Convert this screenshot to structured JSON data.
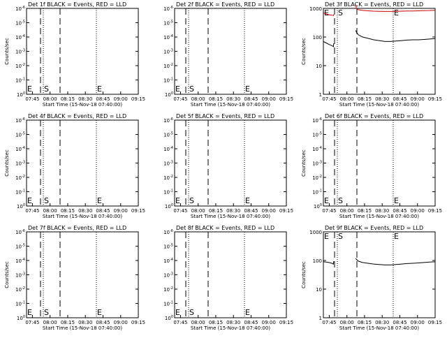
{
  "chart_data": [
    {
      "type": "line",
      "title": "Det 1f BLACK = Events, RED = LLD",
      "xlabel": "Start Time (15-Nov-18 07:40:00)",
      "ylabel": "Counts/sec",
      "x_ticks": [
        "07:45",
        "08:00",
        "08:15",
        "08:30",
        "08:45",
        "09:00",
        "09:15"
      ],
      "x_range_minutes": [
        0,
        40
      ],
      "y_log": true,
      "y_ticks": [
        "10^0",
        "10^-1",
        "10^-2",
        "10^-3",
        "10^-4",
        "10^-5",
        "10^-6"
      ],
      "y_ticks_exp": [
        0,
        -1,
        -2,
        -3,
        -4,
        -5,
        -6
      ],
      "ylim_exp": [
        0,
        -6
      ],
      "dashed_lines_min": [
        5,
        12
      ],
      "dotted_lines_min": [
        6,
        25
      ],
      "markers": [
        {
          "label": "E",
          "x_min": 0
        },
        {
          "label": "S",
          "x_min": 6
        },
        {
          "label": "E",
          "x_min": 25
        }
      ],
      "series": []
    },
    {
      "type": "line",
      "title": "Det 2f BLACK = Events, RED = LLD",
      "xlabel": "Start Time (15-Nov-18 07:40:00)",
      "ylabel": "",
      "x_ticks": [
        "07:45",
        "08:00",
        "08:15",
        "08:30",
        "08:45",
        "09:00",
        "09:15"
      ],
      "x_range_minutes": [
        0,
        40
      ],
      "y_log": true,
      "y_ticks": [
        "10^0",
        "10^-1",
        "10^-2",
        "10^-3",
        "10^-4",
        "10^-5",
        "10^-6"
      ],
      "y_ticks_exp": [
        0,
        -1,
        -2,
        -3,
        -4,
        -5,
        -6
      ],
      "ylim_exp": [
        0,
        -6
      ],
      "dashed_lines_min": [
        4,
        12
      ],
      "dotted_lines_min": [
        5,
        25
      ],
      "markers": [
        {
          "label": "E",
          "x_min": 0
        },
        {
          "label": "S",
          "x_min": 5
        },
        {
          "label": "E",
          "x_min": 25
        }
      ],
      "series": []
    },
    {
      "type": "line",
      "title": "Det 3f BLACK = Events, RED = LLD",
      "xlabel": "Start Time (15-Nov-18 07:40:00)",
      "ylabel": "Counts/sec",
      "x_ticks": [
        "07:45",
        "08:00",
        "08:15",
        "08:30",
        "08:45",
        "09:00",
        "09:15"
      ],
      "x_range_minutes": [
        0,
        40
      ],
      "y_log": true,
      "y_ticks": [
        "1",
        "10",
        "100",
        "1000"
      ],
      "y_ticks_exp": [
        0,
        1,
        2,
        3
      ],
      "ylim_exp": [
        0,
        3
      ],
      "dashed_lines_min": [
        4,
        12
      ],
      "dotted_lines_min": [
        5,
        25
      ],
      "markers": [
        {
          "label": "E",
          "x_min": 0
        },
        {
          "label": "S",
          "x_min": 5
        },
        {
          "label": "E",
          "x_min": 25
        }
      ],
      "series": [
        {
          "name": "Events",
          "color": "#000000",
          "segments": [
            {
              "x": [
                0,
                1,
                2,
                3,
                3.6,
                3.7
              ],
              "y": [
                70,
                62,
                55,
                50,
                46,
                60
              ]
            },
            {
              "x": [
                11.6,
                11.8,
                12.5,
                14,
                16,
                18,
                20,
                22,
                24,
                26,
                28,
                30,
                32,
                34,
                36,
                38,
                40
              ],
              "y": [
                170,
                150,
                120,
                100,
                90,
                80,
                75,
                70,
                70,
                72,
                75,
                78,
                80,
                80,
                82,
                85,
                88
              ]
            }
          ]
        },
        {
          "name": "LLD",
          "color": "#cc0000",
          "segments": [
            {
              "x": [
                0,
                1,
                2,
                3,
                3.6,
                3.7
              ],
              "y": [
                700,
                640,
                600,
                580,
                560,
                620
              ]
            },
            {
              "x": [
                11.6,
                11.8,
                12.5,
                14,
                16,
                18,
                20,
                22,
                24,
                26,
                28,
                30,
                32,
                34,
                36,
                38,
                40
              ],
              "y": [
                1350,
                1000,
                900,
                850,
                820,
                800,
                790,
                780,
                780,
                790,
                800,
                810,
                810,
                820,
                830,
                840,
                860
              ]
            }
          ]
        }
      ]
    },
    {
      "type": "line",
      "title": "Det 4f BLACK = Events, RED = LLD",
      "xlabel": "Start Time (15-Nov-18 07:40:00)",
      "ylabel": "Counts/sec",
      "x_ticks": [
        "07:45",
        "08:00",
        "08:15",
        "08:30",
        "08:45",
        "09:00",
        "09:15"
      ],
      "x_range_minutes": [
        0,
        40
      ],
      "y_log": true,
      "y_ticks": [
        "10^0",
        "10^-1",
        "10^-2",
        "10^-3",
        "10^-4",
        "10^-5",
        "10^-6"
      ],
      "y_ticks_exp": [
        0,
        -1,
        -2,
        -3,
        -4,
        -5,
        -6
      ],
      "ylim_exp": [
        0,
        -6
      ],
      "dashed_lines_min": [
        5,
        12
      ],
      "dotted_lines_min": [
        6,
        25
      ],
      "markers": [
        {
          "label": "E",
          "x_min": 0
        },
        {
          "label": "S",
          "x_min": 6
        },
        {
          "label": "E",
          "x_min": 25
        }
      ],
      "series": []
    },
    {
      "type": "line",
      "title": "Det 5f BLACK = Events, RED = LLD",
      "xlabel": "Start Time (15-Nov-18 07:40:00)",
      "ylabel": "",
      "x_ticks": [
        "07:45",
        "08:00",
        "08:15",
        "08:30",
        "08:45",
        "09:00",
        "09:15"
      ],
      "x_range_minutes": [
        0,
        40
      ],
      "y_log": true,
      "y_ticks": [
        "10^0",
        "10^-1",
        "10^-2",
        "10^-3",
        "10^-4",
        "10^-5",
        "10^-6"
      ],
      "y_ticks_exp": [
        0,
        -1,
        -2,
        -3,
        -4,
        -5,
        -6
      ],
      "ylim_exp": [
        0,
        -6
      ],
      "dashed_lines_min": [
        4,
        12
      ],
      "dotted_lines_min": [
        5,
        25
      ],
      "markers": [
        {
          "label": "E",
          "x_min": 0
        },
        {
          "label": "S",
          "x_min": 5
        },
        {
          "label": "E",
          "x_min": 25
        }
      ],
      "series": []
    },
    {
      "type": "line",
      "title": "Det 6f BLACK = Events, RED = LLD",
      "xlabel": "Start Time (15-Nov-18 07:40:00)",
      "ylabel": "Counts/sec",
      "x_ticks": [
        "07:45",
        "08:00",
        "08:15",
        "08:30",
        "08:45",
        "09:00",
        "09:15"
      ],
      "x_range_minutes": [
        0,
        40
      ],
      "y_log": true,
      "y_ticks": [
        "10^0",
        "10^-1",
        "10^-2",
        "10^-3",
        "10^-4",
        "10^-5",
        "10^-6"
      ],
      "y_ticks_exp": [
        0,
        -1,
        -2,
        -3,
        -4,
        -5,
        -6
      ],
      "ylim_exp": [
        0,
        -6
      ],
      "dashed_lines_min": [
        4,
        12
      ],
      "dotted_lines_min": [
        5,
        25
      ],
      "markers": [
        {
          "label": "E",
          "x_min": 0
        },
        {
          "label": "S",
          "x_min": 5
        },
        {
          "label": "E",
          "x_min": 25
        }
      ],
      "series": []
    },
    {
      "type": "line",
      "title": "Det 7f BLACK = Events, RED = LLD",
      "xlabel": "Start Time (15-Nov-18 07:40:00)",
      "ylabel": "Counts/sec",
      "x_ticks": [
        "07:45",
        "08:00",
        "08:15",
        "08:30",
        "08:45",
        "09:00",
        "09:15"
      ],
      "x_range_minutes": [
        0,
        40
      ],
      "y_log": true,
      "y_ticks": [
        "10^0",
        "10^-1",
        "10^-2",
        "10^-3",
        "10^-4",
        "10^-5",
        "10^-6"
      ],
      "y_ticks_exp": [
        0,
        -1,
        -2,
        -3,
        -4,
        -5,
        -6
      ],
      "ylim_exp": [
        0,
        -6
      ],
      "dashed_lines_min": [
        5,
        12
      ],
      "dotted_lines_min": [
        6,
        25
      ],
      "markers": [
        {
          "label": "E",
          "x_min": 0
        },
        {
          "label": "S",
          "x_min": 6
        },
        {
          "label": "E",
          "x_min": 25
        }
      ],
      "series": []
    },
    {
      "type": "line",
      "title": "Det 8f BLACK = Events, RED = LLD",
      "xlabel": "Start Time (15-Nov-18 07:40:00)",
      "ylabel": "",
      "x_ticks": [
        "07:45",
        "08:00",
        "08:15",
        "08:30",
        "08:45",
        "09:00",
        "09:15"
      ],
      "x_range_minutes": [
        0,
        40
      ],
      "y_log": true,
      "y_ticks": [
        "10^0",
        "10^-1",
        "10^-2",
        "10^-3",
        "10^-4",
        "10^-5",
        "10^-6"
      ],
      "y_ticks_exp": [
        0,
        -1,
        -2,
        -3,
        -4,
        -5,
        -6
      ],
      "ylim_exp": [
        0,
        -6
      ],
      "dashed_lines_min": [
        4,
        12
      ],
      "dotted_lines_min": [
        5,
        25
      ],
      "markers": [
        {
          "label": "E",
          "x_min": 0
        },
        {
          "label": "S",
          "x_min": 5
        },
        {
          "label": "E",
          "x_min": 25
        }
      ],
      "series": []
    },
    {
      "type": "line",
      "title": "Det 9f BLACK = Events, RED = LLD",
      "xlabel": "Start Time (15-Nov-18 07:40:00)",
      "ylabel": "Counts/sec",
      "x_ticks": [
        "07:45",
        "08:00",
        "08:15",
        "08:30",
        "08:45",
        "09:00",
        "09:15"
      ],
      "x_range_minutes": [
        0,
        40
      ],
      "y_log": true,
      "y_ticks": [
        "1",
        "10",
        "100",
        "1000"
      ],
      "y_ticks_exp": [
        0,
        1,
        2,
        3
      ],
      "ylim_exp": [
        0,
        3
      ],
      "dashed_lines_min": [
        4,
        12
      ],
      "dotted_lines_min": [
        5,
        25
      ],
      "markers": [
        {
          "label": "E",
          "x_min": 0
        },
        {
          "label": "S",
          "x_min": 5
        },
        {
          "label": "E",
          "x_min": 25
        }
      ],
      "series": [
        {
          "name": "Events",
          "color": "#000000",
          "segments": [
            {
              "x": [
                0,
                1,
                2,
                3,
                3.6,
                3.7
              ],
              "y": [
                90,
                88,
                85,
                80,
                75,
                95
              ]
            },
            {
              "x": [
                11.6,
                11.8,
                12.5,
                14,
                16,
                18,
                20,
                22,
                24,
                26,
                28,
                30,
                32,
                34,
                36,
                38,
                40
              ],
              "y": [
                120,
                110,
                95,
                85,
                80,
                75,
                72,
                70,
                70,
                72,
                75,
                78,
                80,
                82,
                85,
                88,
                90
              ]
            }
          ]
        }
      ]
    }
  ]
}
